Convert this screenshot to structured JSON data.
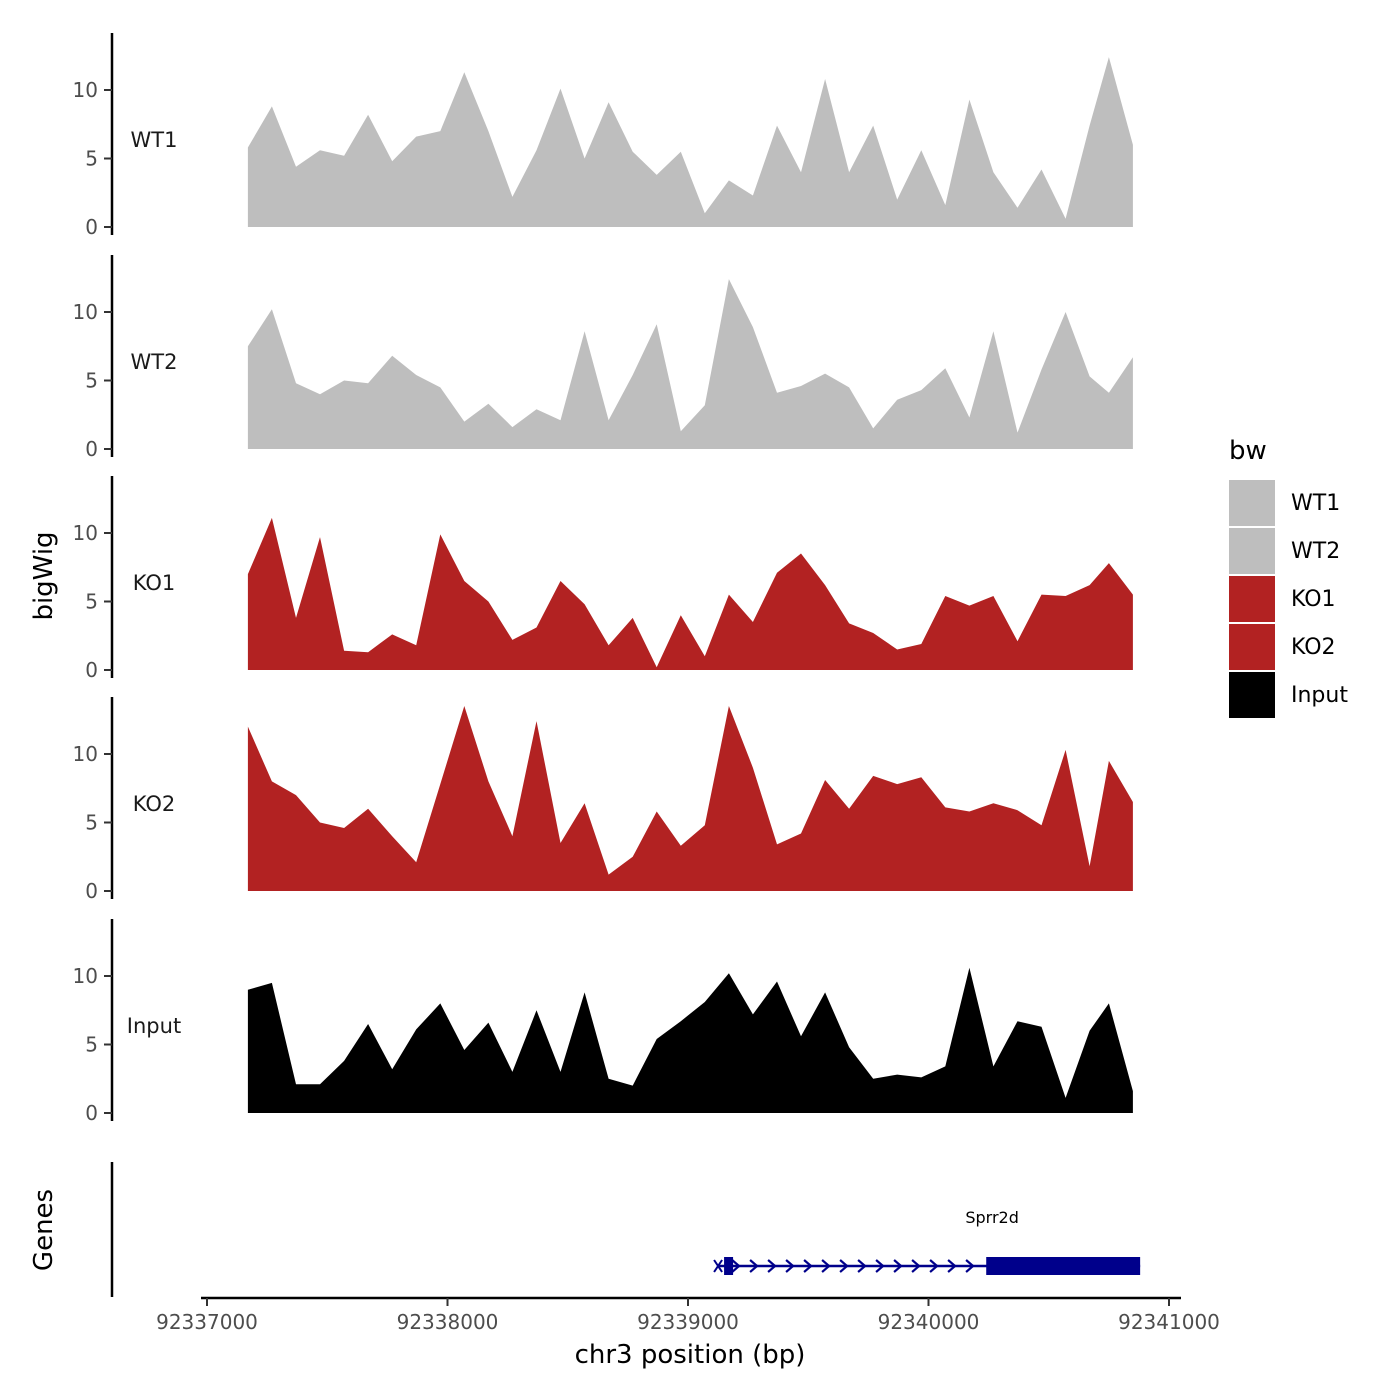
{
  "chart_data": {
    "type": "area",
    "title": "",
    "xlabel": "chr3 position (bp)",
    "ylabel": "bigWig",
    "genes_label": "Genes",
    "x_ticks": [
      92337000,
      92338000,
      92339000,
      92340000,
      92341000
    ],
    "x_tick_labels": [
      "92337000",
      "92338000",
      "92339000",
      "92340000",
      "92341000"
    ],
    "xlim": [
      92336980,
      92341050
    ],
    "y_ticks": [
      0,
      5,
      10
    ],
    "y_tick_labels": [
      "0",
      "5",
      "10"
    ],
    "ylim": [
      0,
      14.3
    ],
    "legend": {
      "title": "bw",
      "position": "right",
      "entries": [
        {
          "label": "WT1",
          "color": "#bebebe"
        },
        {
          "label": "WT2",
          "color": "#bebebe"
        },
        {
          "label": "KO1",
          "color": "#b22222"
        },
        {
          "label": "KO2",
          "color": "#b22222"
        },
        {
          "label": "Input",
          "color": "#000000"
        }
      ]
    },
    "x": [
      92337170,
      92337270,
      92337370,
      92337470,
      92337570,
      92337670,
      92337770,
      92337870,
      92337970,
      92338070,
      92338170,
      92338270,
      92338370,
      92338470,
      92338570,
      92338670,
      92338770,
      92338870,
      92338970,
      92339070,
      92339170,
      92339270,
      92339370,
      92339470,
      92339570,
      92339670,
      92339770,
      92339870,
      92339970,
      92340070,
      92340170,
      92340270,
      92340370,
      92340470,
      92340570,
      92340670,
      92340750,
      92340850
    ],
    "series": [
      {
        "name": "WT1",
        "color": "#bebebe",
        "values": [
          5.8,
          8.8,
          4.4,
          5.6,
          5.2,
          8.2,
          4.8,
          6.6,
          7.0,
          11.3,
          7.0,
          2.2,
          5.6,
          10.1,
          5.0,
          9.1,
          5.5,
          3.8,
          5.5,
          1.0,
          3.4,
          2.3,
          7.4,
          4.0,
          10.8,
          4.0,
          7.4,
          2.0,
          5.6,
          1.6,
          9.3,
          4.0,
          1.4,
          4.2,
          0.6,
          7.4,
          12.4,
          6.0
        ]
      },
      {
        "name": "WT2",
        "color": "#bebebe",
        "values": [
          7.5,
          10.2,
          4.8,
          4.0,
          5.0,
          4.8,
          6.8,
          5.4,
          4.5,
          2.0,
          3.3,
          1.6,
          2.9,
          2.1,
          8.6,
          2.1,
          5.4,
          9.1,
          1.3,
          3.2,
          12.4,
          8.9,
          4.1,
          4.6,
          5.5,
          4.5,
          1.5,
          3.6,
          4.3,
          5.9,
          2.3,
          8.6,
          1.2,
          5.8,
          10.0,
          5.3,
          4.1,
          6.7
        ]
      },
      {
        "name": "KO1",
        "color": "#b22222",
        "values": [
          7.0,
          11.1,
          3.8,
          9.7,
          1.4,
          1.3,
          2.6,
          1.8,
          9.9,
          6.5,
          5.0,
          2.2,
          3.1,
          6.5,
          4.8,
          1.8,
          3.8,
          0.2,
          4.0,
          1.0,
          5.5,
          3.5,
          7.1,
          8.5,
          6.2,
          3.4,
          2.7,
          1.5,
          1.9,
          5.4,
          4.7,
          5.4,
          2.1,
          5.5,
          5.4,
          6.2,
          7.8,
          5.5
        ]
      },
      {
        "name": "KO2",
        "color": "#b22222",
        "values": [
          12.0,
          8.0,
          7.0,
          5.0,
          4.6,
          6.0,
          4.0,
          2.1,
          7.8,
          13.5,
          8.0,
          4.0,
          12.4,
          3.5,
          6.4,
          1.2,
          2.5,
          5.8,
          3.3,
          4.8,
          13.5,
          9.0,
          3.4,
          4.2,
          8.1,
          6.0,
          8.4,
          7.8,
          8.3,
          6.1,
          5.8,
          6.4,
          5.9,
          4.8,
          10.3,
          1.8,
          9.5,
          6.5
        ]
      },
      {
        "name": "Input",
        "color": "#000000",
        "values": [
          9.0,
          9.5,
          2.1,
          2.1,
          3.8,
          6.5,
          3.2,
          6.1,
          8.0,
          4.6,
          6.6,
          3.0,
          7.5,
          3.0,
          8.8,
          2.5,
          2.0,
          5.4,
          6.7,
          8.1,
          10.2,
          7.2,
          9.6,
          5.6,
          8.8,
          4.8,
          2.5,
          2.8,
          2.6,
          3.4,
          10.6,
          3.4,
          6.7,
          6.3,
          1.1,
          6.0,
          8.0,
          1.6
        ]
      }
    ],
    "gene_track": {
      "name": "Sprr2d",
      "strand": "+",
      "tx_start": 92339150,
      "tx_end": 92340880,
      "exons": [
        [
          92339150,
          92339185
        ],
        [
          92340240,
          92340880
        ]
      ],
      "color": "#00008b"
    }
  }
}
